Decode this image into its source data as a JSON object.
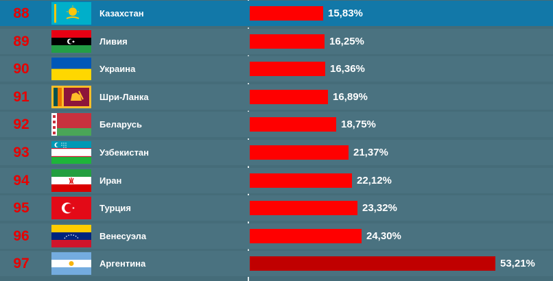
{
  "chart_data": {
    "type": "bar",
    "orientation": "horizontal",
    "xlim": [
      0,
      60
    ],
    "grid": false,
    "highlight_rank": "88",
    "colors": {
      "bar": "#ff0000",
      "bar_emphasis": "#c00000",
      "rank": "#e80000",
      "row": "#4a7280",
      "row_highlight": "#1278a8"
    },
    "rows": [
      {
        "rank": "88",
        "country": "Казахстан",
        "value": 15.83,
        "label": "15,83%",
        "flag": "kazakhstan-flag"
      },
      {
        "rank": "89",
        "country": "Ливия",
        "value": 16.25,
        "label": "16,25%",
        "flag": "libya-flag"
      },
      {
        "rank": "90",
        "country": "Украина",
        "value": 16.36,
        "label": "16,36%",
        "flag": "ukraine-flag"
      },
      {
        "rank": "91",
        "country": "Шри-Ланка",
        "value": 16.89,
        "label": "16,89%",
        "flag": "sri-lanka-flag"
      },
      {
        "rank": "92",
        "country": "Беларусь",
        "value": 18.75,
        "label": "18,75%",
        "flag": "belarus-flag"
      },
      {
        "rank": "93",
        "country": "Узбекистан",
        "value": 21.37,
        "label": "21,37%",
        "flag": "uzbekistan-flag"
      },
      {
        "rank": "94",
        "country": "Иран",
        "value": 22.12,
        "label": "22,12%",
        "flag": "iran-flag"
      },
      {
        "rank": "95",
        "country": "Турция",
        "value": 23.32,
        "label": "23,32%",
        "flag": "turkey-flag"
      },
      {
        "rank": "96",
        "country": "Венесуэла",
        "value": 24.3,
        "label": "24,30%",
        "flag": "venezuela-flag"
      },
      {
        "rank": "97",
        "country": "Аргентина",
        "value": 53.21,
        "label": "53,21%",
        "flag": "argentina-flag",
        "emphasis": true
      }
    ]
  }
}
